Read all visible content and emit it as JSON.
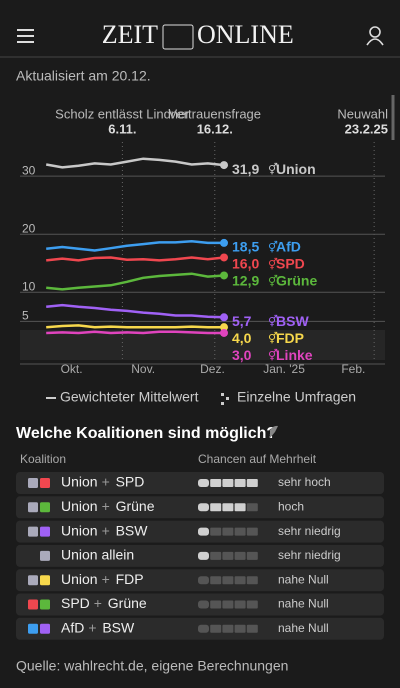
{
  "header": {
    "logo_left": "ZEIT",
    "logo_right": "ONLINE"
  },
  "updated": "Aktualisiert am 20.12.",
  "chart_data": {
    "type": "line",
    "x": [
      "2024-10-04",
      "2024-10-11",
      "2024-10-18",
      "2024-10-25",
      "2024-11-01",
      "2024-11-08",
      "2024-11-15",
      "2024-11-22",
      "2024-11-29",
      "2024-12-06",
      "2024-12-13",
      "2024-12-20"
    ],
    "xlim": [
      "2024-09-27",
      "2025-03-01"
    ],
    "xticks": [
      {
        "value": "2024-10-15",
        "label": "Okt."
      },
      {
        "value": "2024-11-15",
        "label": "Nov."
      },
      {
        "value": "2024-12-15",
        "label": "Dez."
      },
      {
        "value": "2025-01-15",
        "label": "Jan. '25"
      },
      {
        "value": "2025-02-14",
        "label": "Feb."
      }
    ],
    "ylim": [
      -2,
      34.5
    ],
    "yticks": [
      5,
      10,
      20,
      30
    ],
    "grid": true,
    "events": [
      {
        "label": "Scholz entlässt Lindner",
        "date_label": "6.11.",
        "x": "2024-11-06"
      },
      {
        "label": "Vertrauensfrage",
        "date_label": "16.12.",
        "x": "2024-12-16"
      },
      {
        "label": "Neuwahl",
        "date_label": "23.2.25",
        "x": "2025-02-23"
      }
    ],
    "series": [
      {
        "name": "Union",
        "color": "#c8c8c8",
        "values": [
          32.0,
          31.5,
          31.8,
          32.2,
          32.0,
          32.5,
          33.0,
          32.8,
          32.5,
          32.0,
          32.2,
          31.9
        ],
        "value_labels": [
          null,
          null,
          null,
          null,
          null,
          null,
          null,
          null,
          null,
          null,
          null,
          "31,9"
        ]
      },
      {
        "name": "AfD",
        "color": "#3d9ef0",
        "values": [
          17.5,
          17.8,
          17.5,
          17.2,
          17.6,
          18.0,
          18.3,
          18.6,
          18.6,
          18.8,
          18.5,
          18.5
        ],
        "value_labels": [
          null,
          null,
          null,
          null,
          null,
          null,
          null,
          null,
          null,
          null,
          null,
          "18,5"
        ]
      },
      {
        "name": "SPD",
        "color": "#f0474f",
        "values": [
          15.5,
          15.8,
          15.5,
          15.9,
          16.0,
          15.6,
          15.7,
          15.5,
          15.7,
          16.0,
          15.7,
          16.0
        ],
        "value_labels": [
          null,
          null,
          null,
          null,
          null,
          null,
          null,
          null,
          null,
          null,
          null,
          "16,0"
        ]
      },
      {
        "name": "Grüne",
        "color": "#5cb83c",
        "values": [
          10.8,
          10.5,
          10.8,
          11.0,
          11.2,
          11.8,
          12.5,
          12.8,
          13.0,
          13.2,
          12.7,
          12.9
        ],
        "value_labels": [
          null,
          null,
          null,
          null,
          null,
          null,
          null,
          null,
          null,
          null,
          null,
          "12,9"
        ]
      },
      {
        "name": "BSW",
        "color": "#a061f5",
        "values": [
          7.5,
          7.8,
          7.5,
          7.3,
          7.0,
          6.8,
          6.5,
          6.3,
          6.0,
          6.0,
          5.8,
          5.7
        ],
        "value_labels": [
          null,
          null,
          null,
          null,
          null,
          null,
          null,
          null,
          null,
          null,
          null,
          "5,7"
        ]
      },
      {
        "name": "FDP",
        "color": "#f7d84c",
        "values": [
          4.0,
          4.2,
          4.3,
          4.0,
          4.1,
          4.0,
          4.0,
          4.0,
          4.0,
          4.1,
          4.0,
          4.0
        ],
        "value_labels": [
          null,
          null,
          null,
          null,
          null,
          null,
          null,
          null,
          null,
          null,
          null,
          "4,0"
        ]
      },
      {
        "name": "Linke",
        "color": "#e044be",
        "values": [
          3.0,
          3.1,
          3.0,
          3.2,
          3.0,
          3.1,
          3.0,
          3.2,
          3.2,
          3.1,
          3.0,
          3.0
        ],
        "value_labels": [
          null,
          null,
          null,
          null,
          null,
          null,
          null,
          null,
          null,
          null,
          null,
          "3,0"
        ]
      }
    ],
    "legend": [
      "Gewichteter Mittelwert",
      "Einzelne Umfragen"
    ]
  },
  "coalitions": {
    "title": "Welche Koalitionen sind möglich?",
    "headers": [
      "Koalition",
      "Chancen auf Mehrheit"
    ],
    "separator": "+",
    "segments": 5,
    "rows": [
      {
        "parties": [
          "Union",
          "SPD"
        ],
        "colors": [
          "#aab",
          "#f0474f"
        ],
        "level": 5,
        "chance": "sehr hoch"
      },
      {
        "parties": [
          "Union",
          "Grüne"
        ],
        "colors": [
          "#aab",
          "#5cb83c"
        ],
        "level": 4,
        "chance": "hoch"
      },
      {
        "parties": [
          "Union",
          "BSW"
        ],
        "colors": [
          "#aab",
          "#a061f5"
        ],
        "level": 1,
        "chance": "sehr niedrig"
      },
      {
        "parties": [
          "Union allein"
        ],
        "colors": [
          "#aab"
        ],
        "level": 1,
        "chance": "sehr niedrig"
      },
      {
        "parties": [
          "Union",
          "FDP"
        ],
        "colors": [
          "#aab",
          "#f7d84c"
        ],
        "level": 0,
        "chance": "nahe Null"
      },
      {
        "parties": [
          "SPD",
          "Grüne"
        ],
        "colors": [
          "#f0474f",
          "#5cb83c"
        ],
        "level": 0,
        "chance": "nahe Null"
      },
      {
        "parties": [
          "AfD",
          "BSW"
        ],
        "colors": [
          "#3d9ef0",
          "#a061f5"
        ],
        "level": 0,
        "chance": "nahe Null"
      }
    ]
  },
  "source": "Quelle: wahlrecht.de, eigene Berechnungen"
}
